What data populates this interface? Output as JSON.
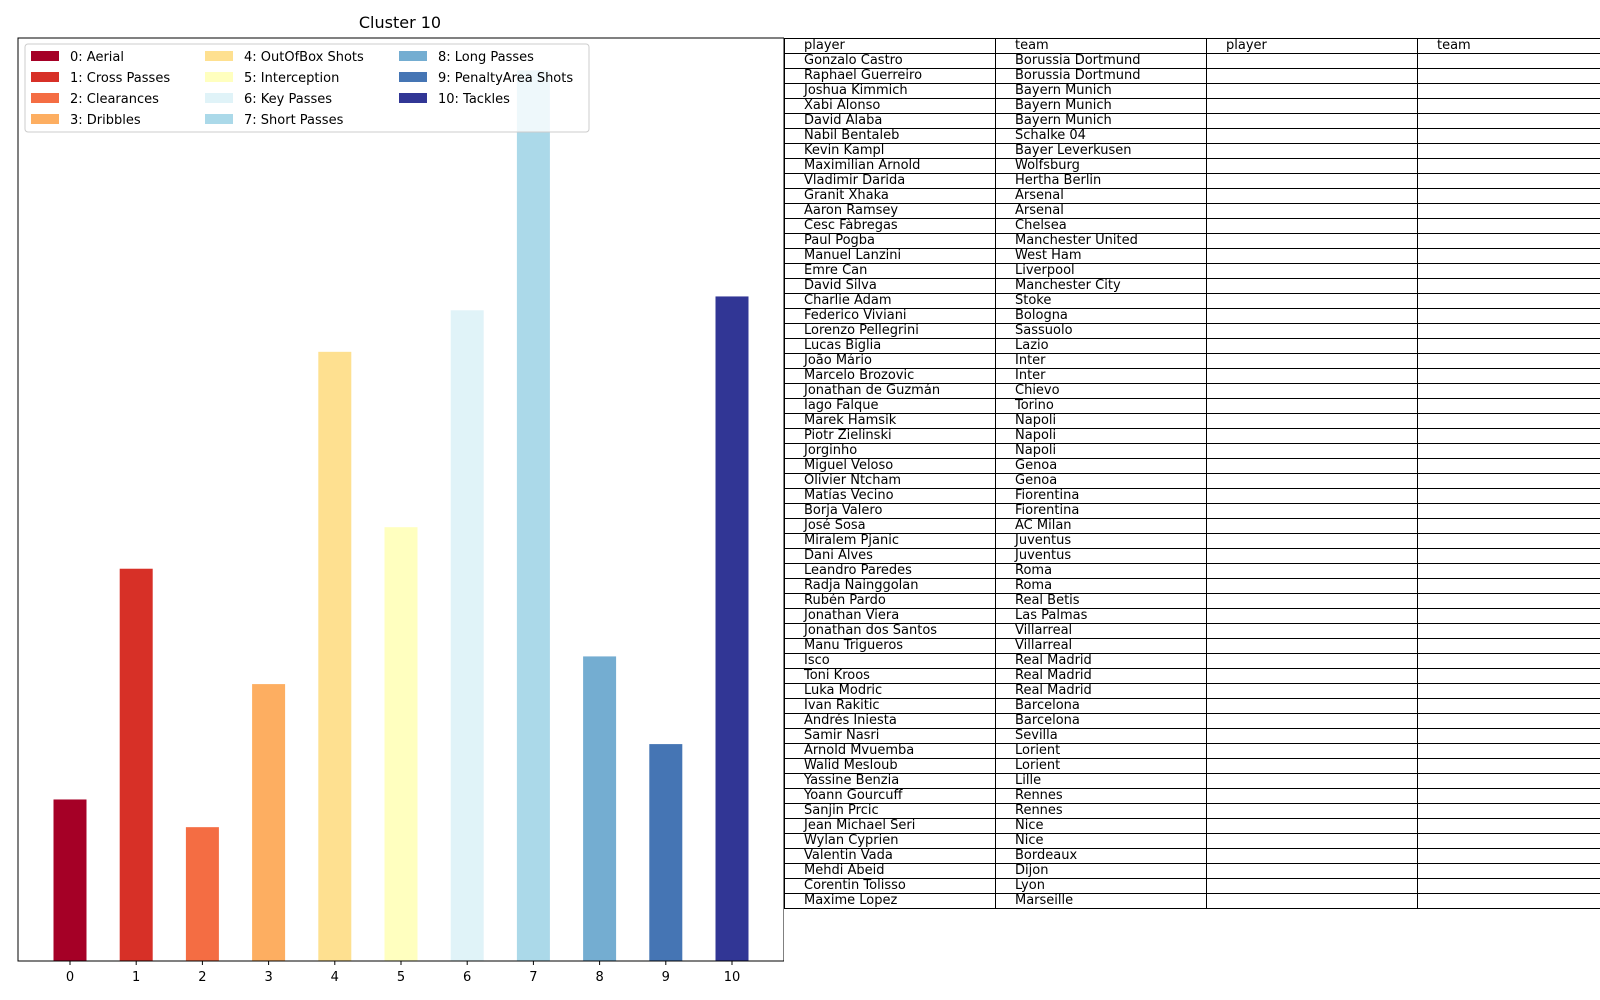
{
  "chart_data": {
    "type": "bar",
    "title": "Cluster 10",
    "categories": [
      "0",
      "1",
      "2",
      "3",
      "4",
      "5",
      "6",
      "7",
      "8",
      "9",
      "10"
    ],
    "values": [
      0.175,
      0.425,
      0.145,
      0.3,
      0.66,
      0.47,
      0.705,
      0.965,
      0.33,
      0.235,
      0.72
    ],
    "colors": [
      "#a50026",
      "#d73027",
      "#f46d43",
      "#fdae61",
      "#fee090",
      "#ffffbf",
      "#e0f3f8",
      "#abd9e9",
      "#74add1",
      "#4575b4",
      "#313695"
    ],
    "legend": [
      "0: Aerial",
      "1: Cross Passes",
      "2: Clearances",
      "3: Dribbles",
      "4: OutOfBox Shots",
      "5: Interception",
      "6: Key Passes",
      "7: Short Passes",
      "8: Long Passes",
      "9: PenaltyArea Shots",
      "10: Tackles"
    ],
    "legend_position": "upper-left",
    "ylim": [
      0,
      1
    ],
    "grid": false,
    "y_ticks_shown": false
  },
  "table": {
    "headers": [
      "player",
      "team",
      "player",
      "team"
    ],
    "rows": [
      [
        "Gonzalo Castro",
        "Borussia Dortmund"
      ],
      [
        "Raphael Guerreiro",
        "Borussia Dortmund"
      ],
      [
        "Joshua Kimmich",
        "Bayern Munich"
      ],
      [
        "Xabi Alonso",
        "Bayern Munich"
      ],
      [
        "David Alaba",
        "Bayern Munich"
      ],
      [
        "Nabil Bentaleb",
        "Schalke 04"
      ],
      [
        "Kevin Kampl",
        "Bayer Leverkusen"
      ],
      [
        "Maximilian Arnold",
        "Wolfsburg"
      ],
      [
        "Vladimir Darida",
        "Hertha Berlin"
      ],
      [
        "Granit Xhaka",
        "Arsenal"
      ],
      [
        "Aaron Ramsey",
        "Arsenal"
      ],
      [
        "Cesc Fàbregas",
        "Chelsea"
      ],
      [
        "Paul Pogba",
        "Manchester United"
      ],
      [
        "Manuel Lanzini",
        "West Ham"
      ],
      [
        "Emre Can",
        "Liverpool"
      ],
      [
        "David Silva",
        "Manchester City"
      ],
      [
        "Charlie Adam",
        "Stoke"
      ],
      [
        "Federico Viviani",
        "Bologna"
      ],
      [
        "Lorenzo Pellegrini",
        "Sassuolo"
      ],
      [
        "Lucas Biglia",
        "Lazio"
      ],
      [
        "João Mário",
        "Inter"
      ],
      [
        "Marcelo Brozovic",
        "Inter"
      ],
      [
        "Jonathan de Guzmán",
        "Chievo"
      ],
      [
        "Iago Falque",
        "Torino"
      ],
      [
        "Marek Hamsik",
        "Napoli"
      ],
      [
        "Piotr Zielinski",
        "Napoli"
      ],
      [
        "Jorginho",
        "Napoli"
      ],
      [
        "Miguel Veloso",
        "Genoa"
      ],
      [
        "Olivier Ntcham",
        "Genoa"
      ],
      [
        "Matías Vecino",
        "Fiorentina"
      ],
      [
        "Borja Valero",
        "Fiorentina"
      ],
      [
        "José Sosa",
        "AC Milan"
      ],
      [
        "Miralem Pjanic",
        "Juventus"
      ],
      [
        "Dani Alves",
        "Juventus"
      ],
      [
        "Leandro Paredes",
        "Roma"
      ],
      [
        "Radja Nainggolan",
        "Roma"
      ],
      [
        "Rubén Pardo",
        "Real Betis"
      ],
      [
        "Jonathan Viera",
        "Las Palmas"
      ],
      [
        "Jonathan dos Santos",
        "Villarreal"
      ],
      [
        "Manu Trigueros",
        "Villarreal"
      ],
      [
        "Isco",
        "Real Madrid"
      ],
      [
        "Toni Kroos",
        "Real Madrid"
      ],
      [
        "Luka Modric",
        "Real Madrid"
      ],
      [
        "Ivan Rakitic",
        "Barcelona"
      ],
      [
        "Andrés Iniesta",
        "Barcelona"
      ],
      [
        "Samir Nasri",
        "Sevilla"
      ],
      [
        "Arnold Mvuemba",
        "Lorient"
      ],
      [
        "Walid Mesloub",
        "Lorient"
      ],
      [
        "Yassine Benzia",
        "Lille"
      ],
      [
        "Yoann Gourcuff",
        "Rennes"
      ],
      [
        "Sanjin Prcic",
        "Rennes"
      ],
      [
        "Jean Michael Seri",
        "Nice"
      ],
      [
        "Wylan Cyprien",
        "Nice"
      ],
      [
        "Valentin Vada",
        "Bordeaux"
      ],
      [
        "Mehdi Abeid",
        "Dijon"
      ],
      [
        "Corentin Tolisso",
        "Lyon"
      ],
      [
        "Maxime Lopez",
        "Marseille"
      ]
    ]
  }
}
